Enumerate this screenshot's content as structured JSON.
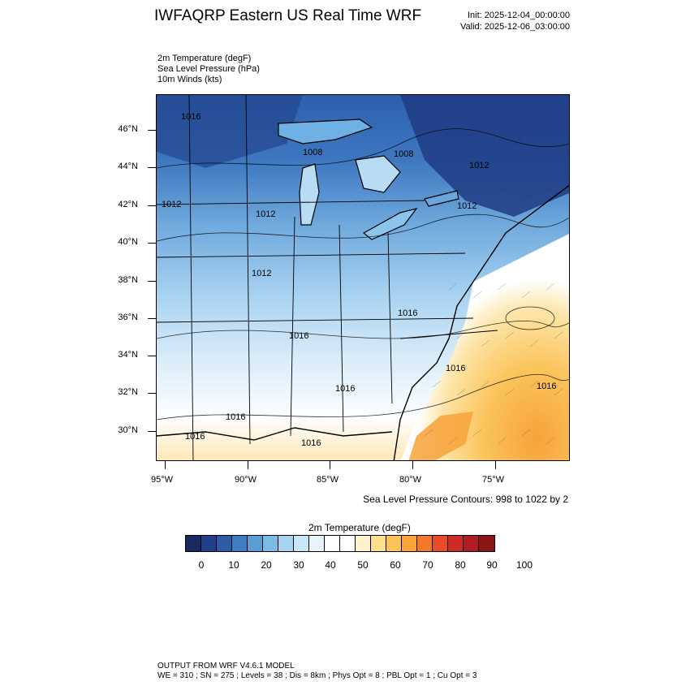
{
  "header": {
    "title": "IWFAQRP Eastern US Real Time WRF",
    "init": "Init: 2025-12-04_00:00:00",
    "valid": "Valid: 2025-12-06_03:00:00"
  },
  "fields": [
    "2m Temperature   (degF)",
    "Sea Level Pressure   (hPa)",
    "10m Winds   (kts)"
  ],
  "axes": {
    "lat_labels": [
      "46°N",
      "44°N",
      "42°N",
      "40°N",
      "38°N",
      "36°N",
      "34°N",
      "32°N",
      "30°N"
    ],
    "lon_labels": [
      "95°W",
      "90°W",
      "85°W",
      "80°W",
      "75°W"
    ]
  },
  "pressure_labels": [
    "1008",
    "1008",
    "1012",
    "1012",
    "1012",
    "1012",
    "1012",
    "1016",
    "1016",
    "1016",
    "1016",
    "1016",
    "1016",
    "1016",
    "1016",
    "1016"
  ],
  "contour_note": "Sea Level Pressure Contours: 998 to 1022 by 2",
  "colorbar": {
    "title": "2m Temperature  (degF)",
    "labels": [
      "0",
      "10",
      "20",
      "30",
      "40",
      "50",
      "60",
      "70",
      "80",
      "90",
      "100"
    ],
    "colors": [
      "#1b2a5e",
      "#213f8a",
      "#2c5ba8",
      "#3f7cc0",
      "#5b9ed6",
      "#7dbbe6",
      "#a5d3f0",
      "#c8e6f8",
      "#e8f4fc",
      "#ffffff",
      "#ffffff",
      "#fff2cc",
      "#ffe08a",
      "#fcc458",
      "#f9a33a",
      "#f3782b",
      "#e84a2a",
      "#cf2b26",
      "#b01e22",
      "#8c1518"
    ]
  },
  "footer": {
    "line1": "OUTPUT FROM WRF V4.6.1 MODEL",
    "line2": "WE = 310 ; SN = 275 ; Levels = 38 ; Dis = 8km ; Phys Opt = 8 ; PBL Opt = 1 ; Cu Opt = 3"
  }
}
